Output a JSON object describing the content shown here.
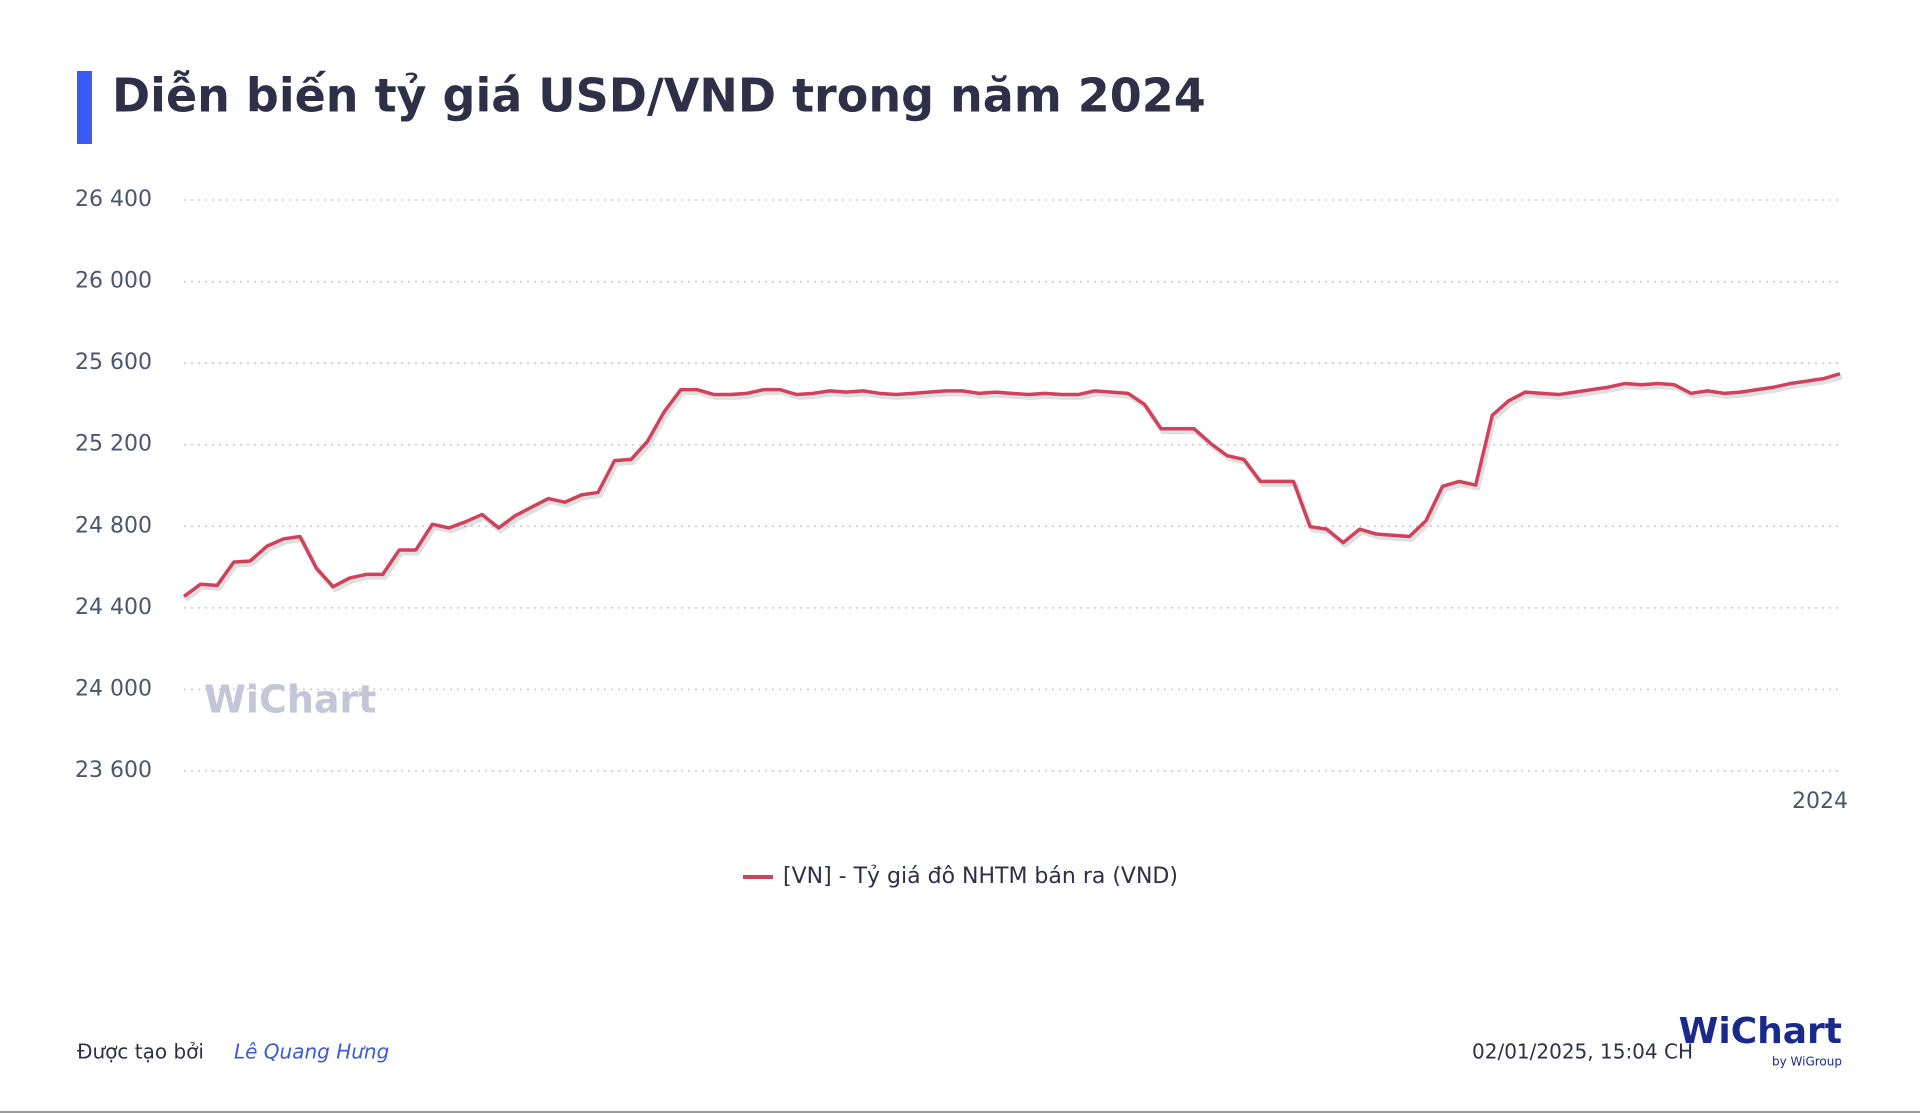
{
  "chart_data": {
    "type": "line",
    "title": "Diễn biến tỷ giá USD/VND trong năm 2024",
    "categories": [
      null,
      null,
      null,
      null,
      null,
      null,
      null,
      null,
      null,
      null,
      null,
      null,
      null,
      null,
      null,
      null,
      null,
      null,
      null,
      null,
      null,
      null,
      null,
      null,
      null,
      null,
      null,
      null,
      null,
      null,
      null,
      null,
      null,
      null,
      null,
      null,
      null,
      null,
      null,
      null,
      null,
      null,
      null,
      null,
      null,
      null,
      null,
      null,
      null,
      null,
      null,
      null,
      null,
      null,
      null,
      null,
      null,
      null,
      null,
      null,
      null,
      null,
      null,
      null,
      null,
      null,
      null,
      null,
      null,
      null,
      null,
      null,
      null,
      null,
      null,
      null,
      null,
      null,
      null,
      null,
      null,
      null,
      null,
      null,
      null,
      null,
      null,
      null,
      null,
      null,
      null,
      null,
      null,
      null,
      null,
      null,
      null,
      null,
      null,
      null,
      "2024"
    ],
    "series": [
      {
        "name": "[VN] - Tỷ giá đô NHTM bán ra (VND)",
        "color": "#d0425c",
        "values": [
          24456,
          24516,
          24510,
          24624,
          24630,
          24702,
          24738,
          24750,
          24594,
          24504,
          24546,
          24564,
          24564,
          24684,
          24684,
          24810,
          24792,
          24822,
          24858,
          24792,
          24852,
          24894,
          24936,
          24918,
          24954,
          24966,
          25122,
          25128,
          25218,
          25362,
          25470,
          25470,
          25446,
          25446,
          25452,
          25470,
          25470,
          25446,
          25452,
          25464,
          25458,
          25464,
          25452,
          25446,
          25452,
          25458,
          25464,
          25464,
          25452,
          25458,
          25452,
          25446,
          25452,
          25446,
          25446,
          25464,
          25458,
          25452,
          25398,
          25278,
          25278,
          25278,
          25206,
          25146,
          25128,
          25020,
          25020,
          25020,
          24798,
          24786,
          24720,
          24786,
          24762,
          24756,
          24750,
          24828,
          24996,
          25020,
          25002,
          25344,
          25416,
          25458,
          25452,
          25446,
          25458,
          25470,
          25482,
          25500,
          25494,
          25500,
          25494,
          25452,
          25464,
          25452,
          25458,
          25470,
          25482,
          25500,
          25512,
          25524,
          25548
        ]
      }
    ],
    "ylim": [
      23600,
      26400
    ],
    "yticks": [
      {
        "value": 23600,
        "label": "23 600"
      },
      {
        "value": 24000,
        "label": "24 000"
      },
      {
        "value": 24400,
        "label": "24 400"
      },
      {
        "value": 24800,
        "label": "24 800"
      },
      {
        "value": 25200,
        "label": "25 200"
      },
      {
        "value": 25600,
        "label": "25 600"
      },
      {
        "value": 26000,
        "label": "26 000"
      },
      {
        "value": 26400,
        "label": "26 400"
      }
    ],
    "grid": true,
    "legend": "bottom"
  },
  "watermark": "WiChart",
  "footer": {
    "credit_label": "Được tạo bởi",
    "author": "Lê Quang Hưng",
    "timestamp": "02/01/2025, 15:04 CH",
    "logo": "WiChart",
    "logo_sub": "by WiGroup"
  }
}
